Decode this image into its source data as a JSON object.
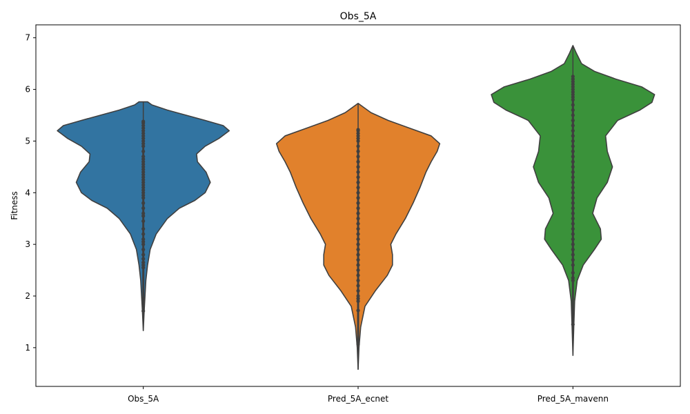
{
  "chart_data": {
    "type": "violin",
    "title": "Obs_5A",
    "xlabel": "",
    "ylabel": "Fitness",
    "ylim": [
      0.25,
      7.25
    ],
    "yticks": [
      1,
      2,
      3,
      4,
      5,
      6,
      7
    ],
    "categories": [
      "Obs_5A",
      "Pred_5A_ecnet",
      "Pred_5A_mavenn"
    ],
    "grid": false,
    "series": [
      {
        "category": "Obs_5A",
        "color": "#3274a1",
        "range": [
          1.33,
          5.76
        ],
        "profile": [
          [
            1.33,
            0.0
          ],
          [
            1.7,
            0.01
          ],
          [
            2.0,
            0.02
          ],
          [
            2.3,
            0.03
          ],
          [
            2.6,
            0.05
          ],
          [
            2.9,
            0.08
          ],
          [
            3.2,
            0.15
          ],
          [
            3.5,
            0.28
          ],
          [
            3.7,
            0.42
          ],
          [
            3.85,
            0.6
          ],
          [
            4.0,
            0.72
          ],
          [
            4.2,
            0.78
          ],
          [
            4.4,
            0.73
          ],
          [
            4.6,
            0.63
          ],
          [
            4.75,
            0.62
          ],
          [
            4.9,
            0.72
          ],
          [
            5.05,
            0.88
          ],
          [
            5.2,
            1.0
          ],
          [
            5.3,
            0.93
          ],
          [
            5.4,
            0.72
          ],
          [
            5.5,
            0.5
          ],
          [
            5.6,
            0.28
          ],
          [
            5.7,
            0.1
          ],
          [
            5.76,
            0.05
          ]
        ],
        "points": [
          1.71,
          1.95,
          2.55,
          2.6,
          2.65,
          2.72,
          2.8,
          2.9,
          3.0,
          3.05,
          3.1,
          3.2,
          3.3,
          3.45,
          3.55,
          3.6,
          3.7,
          3.8,
          3.9,
          3.95,
          4.0,
          4.05,
          4.1,
          4.15,
          4.2,
          4.25,
          4.3,
          4.35,
          4.4,
          4.45,
          4.5,
          4.55,
          4.6,
          4.65,
          4.7,
          4.8,
          4.9,
          4.95,
          5.0,
          5.05,
          5.1,
          5.15,
          5.2,
          5.25,
          5.3,
          5.35,
          5.38
        ]
      },
      {
        "category": "Pred_5A_ecnet",
        "color": "#e1812c",
        "range": [
          0.58,
          5.73
        ],
        "profile": [
          [
            0.58,
            0.0
          ],
          [
            1.0,
            0.01
          ],
          [
            1.4,
            0.03
          ],
          [
            1.8,
            0.08
          ],
          [
            2.1,
            0.2
          ],
          [
            2.4,
            0.34
          ],
          [
            2.6,
            0.4
          ],
          [
            2.8,
            0.4
          ],
          [
            3.0,
            0.38
          ],
          [
            3.2,
            0.44
          ],
          [
            3.5,
            0.55
          ],
          [
            3.8,
            0.64
          ],
          [
            4.1,
            0.72
          ],
          [
            4.4,
            0.79
          ],
          [
            4.6,
            0.85
          ],
          [
            4.8,
            0.92
          ],
          [
            4.95,
            0.95
          ],
          [
            5.1,
            0.85
          ],
          [
            5.25,
            0.6
          ],
          [
            5.4,
            0.35
          ],
          [
            5.55,
            0.15
          ],
          [
            5.73,
            0.0
          ]
        ],
        "points": [
          1.07,
          1.72,
          1.9,
          1.95,
          2.0,
          2.1,
          2.2,
          2.3,
          2.4,
          2.5,
          2.6,
          2.7,
          2.8,
          2.9,
          3.0,
          3.1,
          3.2,
          3.3,
          3.4,
          3.5,
          3.6,
          3.7,
          3.8,
          3.9,
          4.0,
          4.1,
          4.2,
          4.3,
          4.4,
          4.5,
          4.6,
          4.7,
          4.8,
          4.9,
          5.0,
          5.05,
          5.1,
          5.15,
          5.2,
          5.22
        ]
      },
      {
        "category": "Pred_5A_mavenn",
        "color": "#3a923a",
        "range": [
          0.85,
          6.85
        ],
        "profile": [
          [
            0.85,
            0.0
          ],
          [
            1.4,
            0.01
          ],
          [
            1.9,
            0.02
          ],
          [
            2.3,
            0.05
          ],
          [
            2.6,
            0.12
          ],
          [
            2.9,
            0.25
          ],
          [
            3.1,
            0.33
          ],
          [
            3.3,
            0.32
          ],
          [
            3.6,
            0.23
          ],
          [
            3.9,
            0.28
          ],
          [
            4.2,
            0.4
          ],
          [
            4.5,
            0.46
          ],
          [
            4.8,
            0.4
          ],
          [
            5.1,
            0.38
          ],
          [
            5.4,
            0.52
          ],
          [
            5.6,
            0.78
          ],
          [
            5.75,
            0.92
          ],
          [
            5.9,
            0.95
          ],
          [
            6.05,
            0.8
          ],
          [
            6.2,
            0.5
          ],
          [
            6.35,
            0.25
          ],
          [
            6.5,
            0.1
          ],
          [
            6.7,
            0.04
          ],
          [
            6.85,
            0.0
          ]
        ],
        "points": [
          1.45,
          2.3,
          2.35,
          2.45,
          2.6,
          2.7,
          2.8,
          2.9,
          3.0,
          3.1,
          3.2,
          3.3,
          3.4,
          3.5,
          3.6,
          3.7,
          3.8,
          3.9,
          4.0,
          4.1,
          4.2,
          4.3,
          4.4,
          4.5,
          4.6,
          4.7,
          4.8,
          4.9,
          5.0,
          5.1,
          5.2,
          5.3,
          5.4,
          5.5,
          5.6,
          5.7,
          5.8,
          5.85,
          5.9,
          5.95,
          6.0,
          6.05,
          6.1,
          6.15,
          6.2,
          6.25
        ]
      }
    ]
  }
}
